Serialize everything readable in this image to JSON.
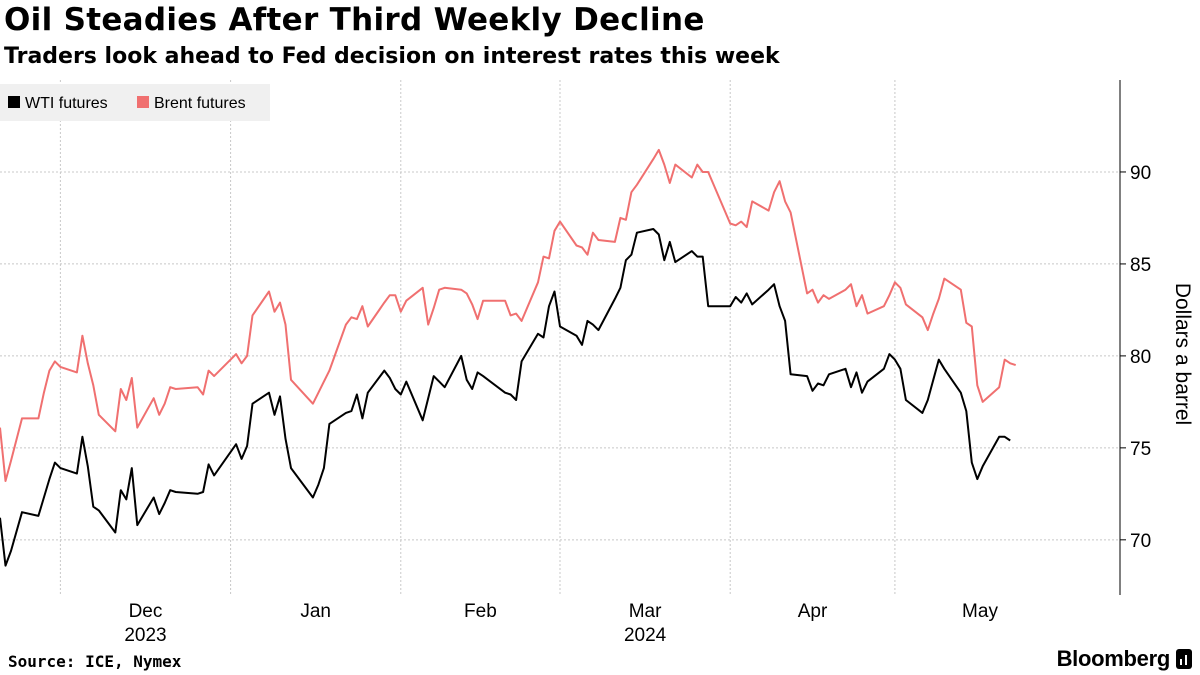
{
  "header": {
    "title": "Oil Steadies After Third Weekly Decline",
    "subtitle": "Traders look ahead to Fed decision on interest rates this week"
  },
  "footer": {
    "source": "Source: ICE, Nymex",
    "brand": "Bloomberg"
  },
  "colors": {
    "wti": "#000000",
    "brent": "#f07070",
    "grid": "#c8c8c8",
    "legend_bg": "#f0f0f0"
  },
  "chart_data": {
    "type": "line",
    "title": "Oil Steadies After Third Weekly Decline",
    "subtitle": "Traders look ahead to Fed decision on interest rates this week",
    "xlabel": "",
    "ylabel": "Dollars a barrel",
    "ylim": [
      67,
      95
    ],
    "yticks": [
      70,
      75,
      80,
      85,
      90
    ],
    "grid": true,
    "legend": "top-left",
    "x_range": [
      "2023-11-20",
      "2024-06-11"
    ],
    "xticks": [
      {
        "date": "2023-12-01",
        "label": "Dec",
        "year": "2023"
      },
      {
        "date": "2024-01-01",
        "label": "Jan",
        "year": ""
      },
      {
        "date": "2024-02-01",
        "label": "Feb",
        "year": ""
      },
      {
        "date": "2024-03-01",
        "label": "Mar",
        "year": "2024"
      },
      {
        "date": "2024-04-01",
        "label": "Apr",
        "year": ""
      },
      {
        "date": "2024-05-01",
        "label": "May",
        "year": ""
      }
    ],
    "series": [
      {
        "name": "WTI futures",
        "color": "#000000",
        "points": [
          [
            "2023-11-20",
            71.2
          ],
          [
            "2023-11-21",
            68.6
          ],
          [
            "2023-11-22",
            69.4
          ],
          [
            "2023-11-24",
            71.5
          ],
          [
            "2023-11-27",
            71.3
          ],
          [
            "2023-11-28",
            72.3
          ],
          [
            "2023-11-29",
            73.3
          ],
          [
            "2023-11-30",
            74.2
          ],
          [
            "2023-12-01",
            73.9
          ],
          [
            "2023-12-04",
            73.6
          ],
          [
            "2023-12-05",
            75.6
          ],
          [
            "2023-12-06",
            74.0
          ],
          [
            "2023-12-07",
            71.8
          ],
          [
            "2023-12-08",
            71.6
          ],
          [
            "2023-12-11",
            70.4
          ],
          [
            "2023-12-12",
            72.7
          ],
          [
            "2023-12-13",
            72.2
          ],
          [
            "2023-12-14",
            73.9
          ],
          [
            "2023-12-15",
            70.8
          ],
          [
            "2023-12-18",
            72.3
          ],
          [
            "2023-12-19",
            71.4
          ],
          [
            "2023-12-20",
            72.0
          ],
          [
            "2023-12-21",
            72.7
          ],
          [
            "2023-12-22",
            72.6
          ],
          [
            "2023-12-26",
            72.5
          ],
          [
            "2023-12-27",
            72.6
          ],
          [
            "2023-12-28",
            74.1
          ],
          [
            "2023-12-29",
            73.5
          ],
          [
            "2024-01-02",
            75.2
          ],
          [
            "2024-01-03",
            74.4
          ],
          [
            "2024-01-04",
            75.1
          ],
          [
            "2024-01-05",
            77.4
          ],
          [
            "2024-01-08",
            78.0
          ],
          [
            "2024-01-09",
            76.8
          ],
          [
            "2024-01-10",
            77.8
          ],
          [
            "2024-01-11",
            75.5
          ],
          [
            "2024-01-12",
            73.9
          ],
          [
            "2024-01-16",
            72.3
          ],
          [
            "2024-01-17",
            73.0
          ],
          [
            "2024-01-18",
            73.9
          ],
          [
            "2024-01-19",
            76.3
          ],
          [
            "2024-01-22",
            76.9
          ],
          [
            "2024-01-23",
            77.0
          ],
          [
            "2024-01-24",
            77.9
          ],
          [
            "2024-01-25",
            76.6
          ],
          [
            "2024-01-26",
            78.0
          ],
          [
            "2024-01-29",
            79.2
          ],
          [
            "2024-01-30",
            78.8
          ],
          [
            "2024-01-31",
            78.2
          ],
          [
            "2024-02-01",
            77.9
          ],
          [
            "2024-02-02",
            78.6
          ],
          [
            "2024-02-05",
            76.5
          ],
          [
            "2024-02-06",
            77.7
          ],
          [
            "2024-02-07",
            78.9
          ],
          [
            "2024-02-08",
            78.6
          ],
          [
            "2024-02-09",
            78.3
          ],
          [
            "2024-02-12",
            80.0
          ],
          [
            "2024-02-13",
            78.7
          ],
          [
            "2024-02-14",
            78.2
          ],
          [
            "2024-02-15",
            79.1
          ],
          [
            "2024-02-16",
            78.9
          ],
          [
            "2024-02-20",
            78.0
          ],
          [
            "2024-02-21",
            77.9
          ],
          [
            "2024-02-22",
            77.6
          ],
          [
            "2024-02-23",
            79.7
          ],
          [
            "2024-02-26",
            81.2
          ],
          [
            "2024-02-27",
            81.0
          ],
          [
            "2024-02-28",
            82.7
          ],
          [
            "2024-02-29",
            83.5
          ],
          [
            "2024-03-01",
            81.6
          ],
          [
            "2024-03-04",
            81.1
          ],
          [
            "2024-03-05",
            80.6
          ],
          [
            "2024-03-06",
            81.9
          ],
          [
            "2024-03-07",
            81.7
          ],
          [
            "2024-03-08",
            81.4
          ],
          [
            "2024-03-11",
            83.1
          ],
          [
            "2024-03-12",
            83.7
          ],
          [
            "2024-03-13",
            85.2
          ],
          [
            "2024-03-14",
            85.5
          ],
          [
            "2024-03-15",
            86.7
          ],
          [
            "2024-03-18",
            86.9
          ],
          [
            "2024-03-19",
            86.6
          ],
          [
            "2024-03-20",
            85.2
          ],
          [
            "2024-03-21",
            86.2
          ],
          [
            "2024-03-22",
            85.1
          ],
          [
            "2024-03-25",
            85.7
          ],
          [
            "2024-03-26",
            85.4
          ],
          [
            "2024-03-27",
            85.4
          ],
          [
            "2024-03-28",
            82.7
          ],
          [
            "2024-04-01",
            82.7
          ],
          [
            "2024-04-02",
            83.2
          ],
          [
            "2024-04-03",
            82.9
          ],
          [
            "2024-04-04",
            83.4
          ],
          [
            "2024-04-05",
            82.8
          ],
          [
            "2024-04-08",
            83.6
          ],
          [
            "2024-04-09",
            83.9
          ],
          [
            "2024-04-10",
            82.7
          ],
          [
            "2024-04-11",
            81.9
          ],
          [
            "2024-04-12",
            79.0
          ],
          [
            "2024-04-15",
            78.9
          ],
          [
            "2024-04-16",
            78.1
          ],
          [
            "2024-04-17",
            78.5
          ],
          [
            "2024-04-18",
            78.4
          ],
          [
            "2024-04-19",
            79.0
          ],
          [
            "2024-04-22",
            79.3
          ],
          [
            "2024-04-23",
            78.3
          ],
          [
            "2024-04-24",
            79.1
          ],
          [
            "2024-04-25",
            78.0
          ],
          [
            "2024-04-26",
            78.6
          ],
          [
            "2024-04-29",
            79.3
          ],
          [
            "2024-04-30",
            80.1
          ],
          [
            "2024-05-01",
            79.8
          ],
          [
            "2024-05-02",
            79.3
          ],
          [
            "2024-05-03",
            77.6
          ],
          [
            "2024-05-06",
            76.9
          ],
          [
            "2024-05-07",
            77.6
          ],
          [
            "2024-05-08",
            78.7
          ],
          [
            "2024-05-09",
            79.8
          ],
          [
            "2024-05-10",
            79.3
          ],
          [
            "2024-05-13",
            78.0
          ],
          [
            "2024-05-14",
            77.0
          ],
          [
            "2024-05-15",
            74.2
          ],
          [
            "2024-05-16",
            73.3
          ],
          [
            "2024-05-17",
            74.0
          ],
          [
            "2024-05-20",
            75.6
          ],
          [
            "2024-05-21",
            75.6
          ],
          [
            "2024-05-22",
            75.4
          ]
        ]
      },
      {
        "name": "Brent futures",
        "color": "#f07070",
        "points": [
          [
            "2023-11-20",
            76.1
          ],
          [
            "2023-11-21",
            73.2
          ],
          [
            "2023-11-22",
            74.3
          ],
          [
            "2023-11-24",
            76.6
          ],
          [
            "2023-11-27",
            76.6
          ],
          [
            "2023-11-28",
            78.0
          ],
          [
            "2023-11-29",
            79.2
          ],
          [
            "2023-11-30",
            79.7
          ],
          [
            "2023-12-01",
            79.4
          ],
          [
            "2023-12-04",
            79.1
          ],
          [
            "2023-12-05",
            81.1
          ],
          [
            "2023-12-06",
            79.6
          ],
          [
            "2023-12-07",
            78.4
          ],
          [
            "2023-12-08",
            76.8
          ],
          [
            "2023-12-11",
            75.9
          ],
          [
            "2023-12-12",
            78.2
          ],
          [
            "2023-12-13",
            77.6
          ],
          [
            "2023-12-14",
            78.8
          ],
          [
            "2023-12-15",
            76.1
          ],
          [
            "2023-12-18",
            77.7
          ],
          [
            "2023-12-19",
            76.8
          ],
          [
            "2023-12-20",
            77.4
          ],
          [
            "2023-12-21",
            78.3
          ],
          [
            "2023-12-22",
            78.2
          ],
          [
            "2023-12-26",
            78.3
          ],
          [
            "2023-12-27",
            77.9
          ],
          [
            "2023-12-28",
            79.2
          ],
          [
            "2023-12-29",
            78.9
          ],
          [
            "2024-01-02",
            80.1
          ],
          [
            "2024-01-03",
            79.6
          ],
          [
            "2024-01-04",
            80.0
          ],
          [
            "2024-01-05",
            82.2
          ],
          [
            "2024-01-08",
            83.5
          ],
          [
            "2024-01-09",
            82.4
          ],
          [
            "2024-01-10",
            82.9
          ],
          [
            "2024-01-11",
            81.7
          ],
          [
            "2024-01-12",
            78.7
          ],
          [
            "2024-01-16",
            77.4
          ],
          [
            "2024-01-17",
            78.0
          ],
          [
            "2024-01-18",
            78.6
          ],
          [
            "2024-01-19",
            79.2
          ],
          [
            "2024-01-22",
            81.7
          ],
          [
            "2024-01-23",
            82.1
          ],
          [
            "2024-01-24",
            82.0
          ],
          [
            "2024-01-25",
            82.7
          ],
          [
            "2024-01-26",
            81.6
          ],
          [
            "2024-01-29",
            82.9
          ],
          [
            "2024-01-30",
            83.3
          ],
          [
            "2024-01-31",
            83.3
          ],
          [
            "2024-02-01",
            82.4
          ],
          [
            "2024-02-02",
            83.0
          ],
          [
            "2024-02-05",
            83.7
          ],
          [
            "2024-02-06",
            81.7
          ],
          [
            "2024-02-07",
            82.6
          ],
          [
            "2024-02-08",
            83.6
          ],
          [
            "2024-02-09",
            83.7
          ],
          [
            "2024-02-12",
            83.6
          ],
          [
            "2024-02-13",
            83.4
          ],
          [
            "2024-02-14",
            82.8
          ],
          [
            "2024-02-15",
            82.0
          ],
          [
            "2024-02-16",
            83.0
          ],
          [
            "2024-02-20",
            83.0
          ],
          [
            "2024-02-21",
            82.2
          ],
          [
            "2024-02-22",
            82.3
          ],
          [
            "2024-02-23",
            81.9
          ],
          [
            "2024-02-26",
            84.0
          ],
          [
            "2024-02-27",
            85.4
          ],
          [
            "2024-02-28",
            85.3
          ],
          [
            "2024-02-29",
            86.8
          ],
          [
            "2024-03-01",
            87.3
          ],
          [
            "2024-03-04",
            86.0
          ],
          [
            "2024-03-05",
            85.9
          ],
          [
            "2024-03-06",
            85.5
          ],
          [
            "2024-03-07",
            86.7
          ],
          [
            "2024-03-08",
            86.3
          ],
          [
            "2024-03-11",
            86.2
          ],
          [
            "2024-03-12",
            87.5
          ],
          [
            "2024-03-13",
            87.4
          ],
          [
            "2024-03-14",
            88.9
          ],
          [
            "2024-03-15",
            89.3
          ],
          [
            "2024-03-18",
            90.7
          ],
          [
            "2024-03-19",
            91.2
          ],
          [
            "2024-03-20",
            90.4
          ],
          [
            "2024-03-21",
            89.4
          ],
          [
            "2024-03-22",
            90.4
          ],
          [
            "2024-03-25",
            89.7
          ],
          [
            "2024-03-26",
            90.4
          ],
          [
            "2024-03-27",
            90.0
          ],
          [
            "2024-03-28",
            90.0
          ],
          [
            "2024-04-01",
            87.2
          ],
          [
            "2024-04-02",
            87.1
          ],
          [
            "2024-04-03",
            87.3
          ],
          [
            "2024-04-04",
            87.0
          ],
          [
            "2024-04-05",
            88.4
          ],
          [
            "2024-04-08",
            87.9
          ],
          [
            "2024-04-09",
            88.9
          ],
          [
            "2024-04-10",
            89.5
          ],
          [
            "2024-04-11",
            88.4
          ],
          [
            "2024-04-12",
            87.8
          ],
          [
            "2024-04-15",
            83.4
          ],
          [
            "2024-04-16",
            83.6
          ],
          [
            "2024-04-17",
            82.9
          ],
          [
            "2024-04-18",
            83.3
          ],
          [
            "2024-04-19",
            83.1
          ],
          [
            "2024-04-22",
            83.6
          ],
          [
            "2024-04-23",
            83.9
          ],
          [
            "2024-04-24",
            82.7
          ],
          [
            "2024-04-25",
            83.3
          ],
          [
            "2024-04-26",
            82.3
          ],
          [
            "2024-04-29",
            82.7
          ],
          [
            "2024-04-30",
            83.3
          ],
          [
            "2024-05-01",
            84.0
          ],
          [
            "2024-05-02",
            83.7
          ],
          [
            "2024-05-03",
            82.8
          ],
          [
            "2024-05-06",
            82.1
          ],
          [
            "2024-05-07",
            81.4
          ],
          [
            "2024-05-08",
            82.3
          ],
          [
            "2024-05-09",
            83.1
          ],
          [
            "2024-05-10",
            84.2
          ],
          [
            "2024-05-13",
            83.6
          ],
          [
            "2024-05-14",
            81.8
          ],
          [
            "2024-05-15",
            81.6
          ],
          [
            "2024-05-16",
            78.4
          ],
          [
            "2024-05-17",
            77.5
          ],
          [
            "2024-05-20",
            78.3
          ],
          [
            "2024-05-21",
            79.8
          ],
          [
            "2024-05-22",
            79.6
          ],
          [
            "2024-05-23",
            79.5
          ]
        ]
      }
    ]
  }
}
